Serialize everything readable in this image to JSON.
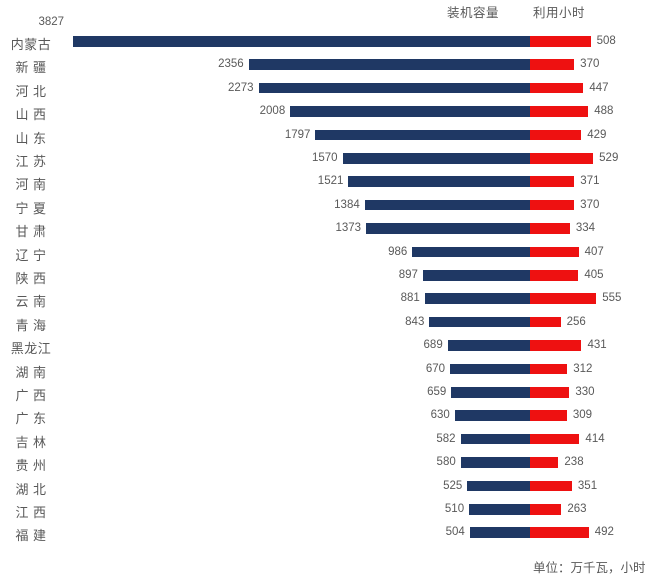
{
  "header": {
    "capacity_legend": "装机容量",
    "hours_legend": "利用小时"
  },
  "footer": {
    "unit_note": "单位：万千瓦，小时"
  },
  "colors": {
    "capacity_bar": "#1F3864",
    "hours_bar": "#EE1111",
    "text": "#595959"
  },
  "chart_data": {
    "type": "bar",
    "subtype": "diverging-horizontal",
    "title": "",
    "legend_position": "top-right",
    "value_labels": "outside-ends",
    "grid": false,
    "unit_note": "单位：万千瓦，小时",
    "categories": [
      "内蒙古",
      "新 疆",
      "河 北",
      "山 西",
      "山 东",
      "江 苏",
      "河 南",
      "宁 夏",
      "甘 肃",
      "辽 宁",
      "陕 西",
      "云 南",
      "青 海",
      "黑龙江",
      "湖 南",
      "广 西",
      "广 东",
      "吉 林",
      "贵 州",
      "湖 北",
      "江 西",
      "福 建"
    ],
    "series": [
      {
        "name": "装机容量",
        "color": "#1F3864",
        "direction": "left",
        "values": [
          3827,
          2356,
          2273,
          2008,
          1797,
          1570,
          1521,
          1384,
          1373,
          986,
          897,
          881,
          843,
          689,
          670,
          659,
          630,
          582,
          580,
          525,
          510,
          504
        ]
      },
      {
        "name": "利用小时",
        "color": "#EE1111",
        "direction": "right",
        "values": [
          508,
          370,
          447,
          488,
          429,
          529,
          371,
          370,
          334,
          407,
          405,
          555,
          256,
          431,
          312,
          330,
          309,
          414,
          238,
          351,
          263,
          492
        ]
      }
    ],
    "annotations": {
      "first_capacity_label_above_bar": true
    }
  }
}
